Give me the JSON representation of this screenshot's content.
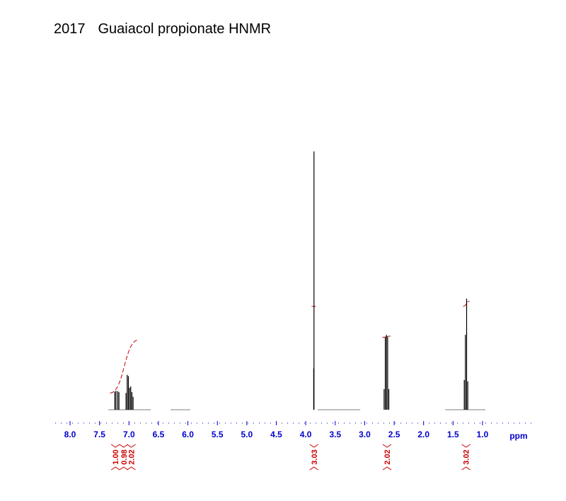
{
  "header": {
    "id": "2017",
    "title": "Guaiacol propionate HNMR"
  },
  "chart_data": {
    "type": "line",
    "title": "Guaiacol propionate HNMR",
    "xlabel": "ppm",
    "ylabel": "",
    "x_reversed": true,
    "xlim": [
      8.2,
      0.2
    ],
    "ylim": [
      0,
      100
    ],
    "ticks": [
      "8.0",
      "7.5",
      "7.0",
      "6.5",
      "6.0",
      "5.5",
      "5.0",
      "4.5",
      "4.0",
      "3.5",
      "3.0",
      "2.5",
      "2.0",
      "1.5",
      "1.0"
    ],
    "tick_values": [
      8.0,
      7.5,
      7.0,
      6.5,
      6.0,
      5.5,
      5.0,
      4.5,
      4.0,
      3.5,
      3.0,
      2.5,
      2.0,
      1.5,
      1.0
    ],
    "peaks": [
      {
        "ppm": 7.24,
        "height": 7.0
      },
      {
        "ppm": 7.22,
        "height": 7.3
      },
      {
        "ppm": 7.19,
        "height": 7.2
      },
      {
        "ppm": 7.17,
        "height": 6.8
      },
      {
        "ppm": 7.05,
        "height": 6.5
      },
      {
        "ppm": 7.03,
        "height": 13.5
      },
      {
        "ppm": 7.01,
        "height": 13.0
      },
      {
        "ppm": 6.99,
        "height": 8.5
      },
      {
        "ppm": 6.97,
        "height": 9.0
      },
      {
        "ppm": 6.95,
        "height": 6.8
      },
      {
        "ppm": 6.93,
        "height": 5.0
      },
      {
        "ppm": 3.86,
        "height": 100
      },
      {
        "ppm": 3.865,
        "height": 16.0
      },
      {
        "ppm": 2.65,
        "height": 28.0
      },
      {
        "ppm": 2.63,
        "height": 29.0
      },
      {
        "ppm": 2.61,
        "height": 28.5
      },
      {
        "ppm": 2.67,
        "height": 8.0
      },
      {
        "ppm": 2.59,
        "height": 8.0
      },
      {
        "ppm": 1.29,
        "height": 29.0
      },
      {
        "ppm": 1.27,
        "height": 43.0
      },
      {
        "ppm": 1.25,
        "height": 11.0
      },
      {
        "ppm": 1.31,
        "height": 11.5
      }
    ],
    "integral_curves": [
      {
        "from": 7.32,
        "to": 6.84,
        "start_height": 6.5,
        "end_height": 27.0
      },
      {
        "from": 3.9,
        "to": 3.82,
        "start_height": 40.0,
        "end_height": 40.0
      },
      {
        "from": 2.7,
        "to": 2.56,
        "start_height": 28.0,
        "end_height": 28.5
      },
      {
        "from": 1.33,
        "to": 1.22,
        "start_height": 40.0,
        "end_height": 42.0
      }
    ],
    "integrals": [
      {
        "label": "1.00",
        "ppm": 7.23
      },
      {
        "label": "0.98",
        "ppm": 7.09
      },
      {
        "label": "2.02",
        "ppm": 6.96
      },
      {
        "label": "3.03",
        "ppm": 3.86
      },
      {
        "label": "2.02",
        "ppm": 2.62
      },
      {
        "label": "3.02",
        "ppm": 1.28
      }
    ],
    "colors": {
      "spectrum": "#000000",
      "integral": "#cc0000",
      "axis": "#0000cc"
    }
  }
}
